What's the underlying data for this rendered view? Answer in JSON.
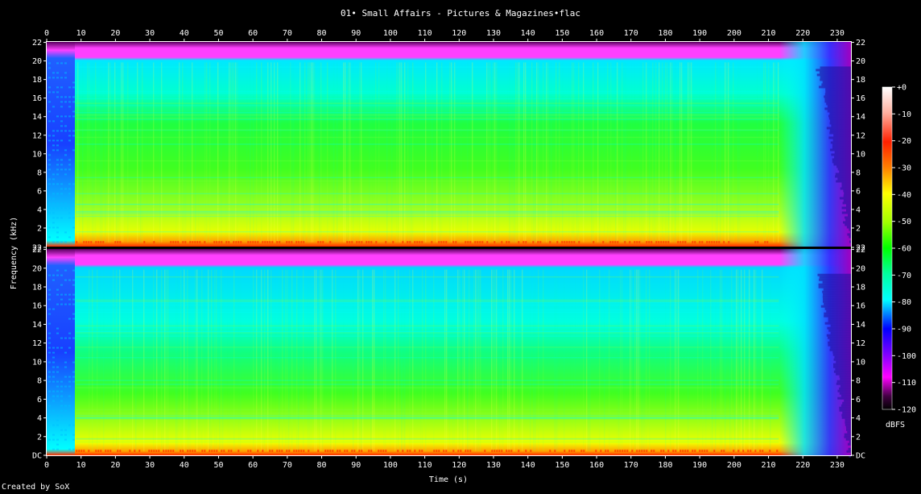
{
  "chart_data": {
    "type": "heatmap",
    "title": "01• Small Affairs - Pictures & Magazines•flac",
    "xlabel": "Time (s)",
    "ylabel": "Frequency (kHz)",
    "x_ticks": [
      0,
      10,
      20,
      30,
      40,
      50,
      60,
      70,
      80,
      90,
      100,
      110,
      120,
      130,
      140,
      150,
      160,
      170,
      180,
      190,
      200,
      210,
      220,
      230
    ],
    "xlim": [
      0,
      234
    ],
    "ylim": [
      0,
      22.05
    ],
    "y_ticks": [
      {
        "v": 0,
        "label": "DC"
      },
      {
        "v": 2,
        "label": "2"
      },
      {
        "v": 4,
        "label": "4"
      },
      {
        "v": 6,
        "label": "6"
      },
      {
        "v": 8,
        "label": "8"
      },
      {
        "v": 10,
        "label": "10"
      },
      {
        "v": 12,
        "label": "12"
      },
      {
        "v": 14,
        "label": "14"
      },
      {
        "v": 16,
        "label": "16"
      },
      {
        "v": 18,
        "label": "18"
      },
      {
        "v": 20,
        "label": "20"
      },
      {
        "v": 22,
        "label": "22"
      }
    ],
    "channels": 2,
    "intro_end_s": 8.5,
    "fade_start_s": 213,
    "lowpass_khz": 20.4,
    "colorbar": {
      "unit": "dBFS",
      "ticks": [
        "+0",
        "-10",
        "-20",
        "-30",
        "-40",
        "-50",
        "-60",
        "-70",
        "-80",
        "-90",
        "-100",
        "-110",
        "-120"
      ],
      "range": [
        0,
        -120
      ]
    }
  },
  "footer": {
    "credit": "Created by SoX"
  }
}
